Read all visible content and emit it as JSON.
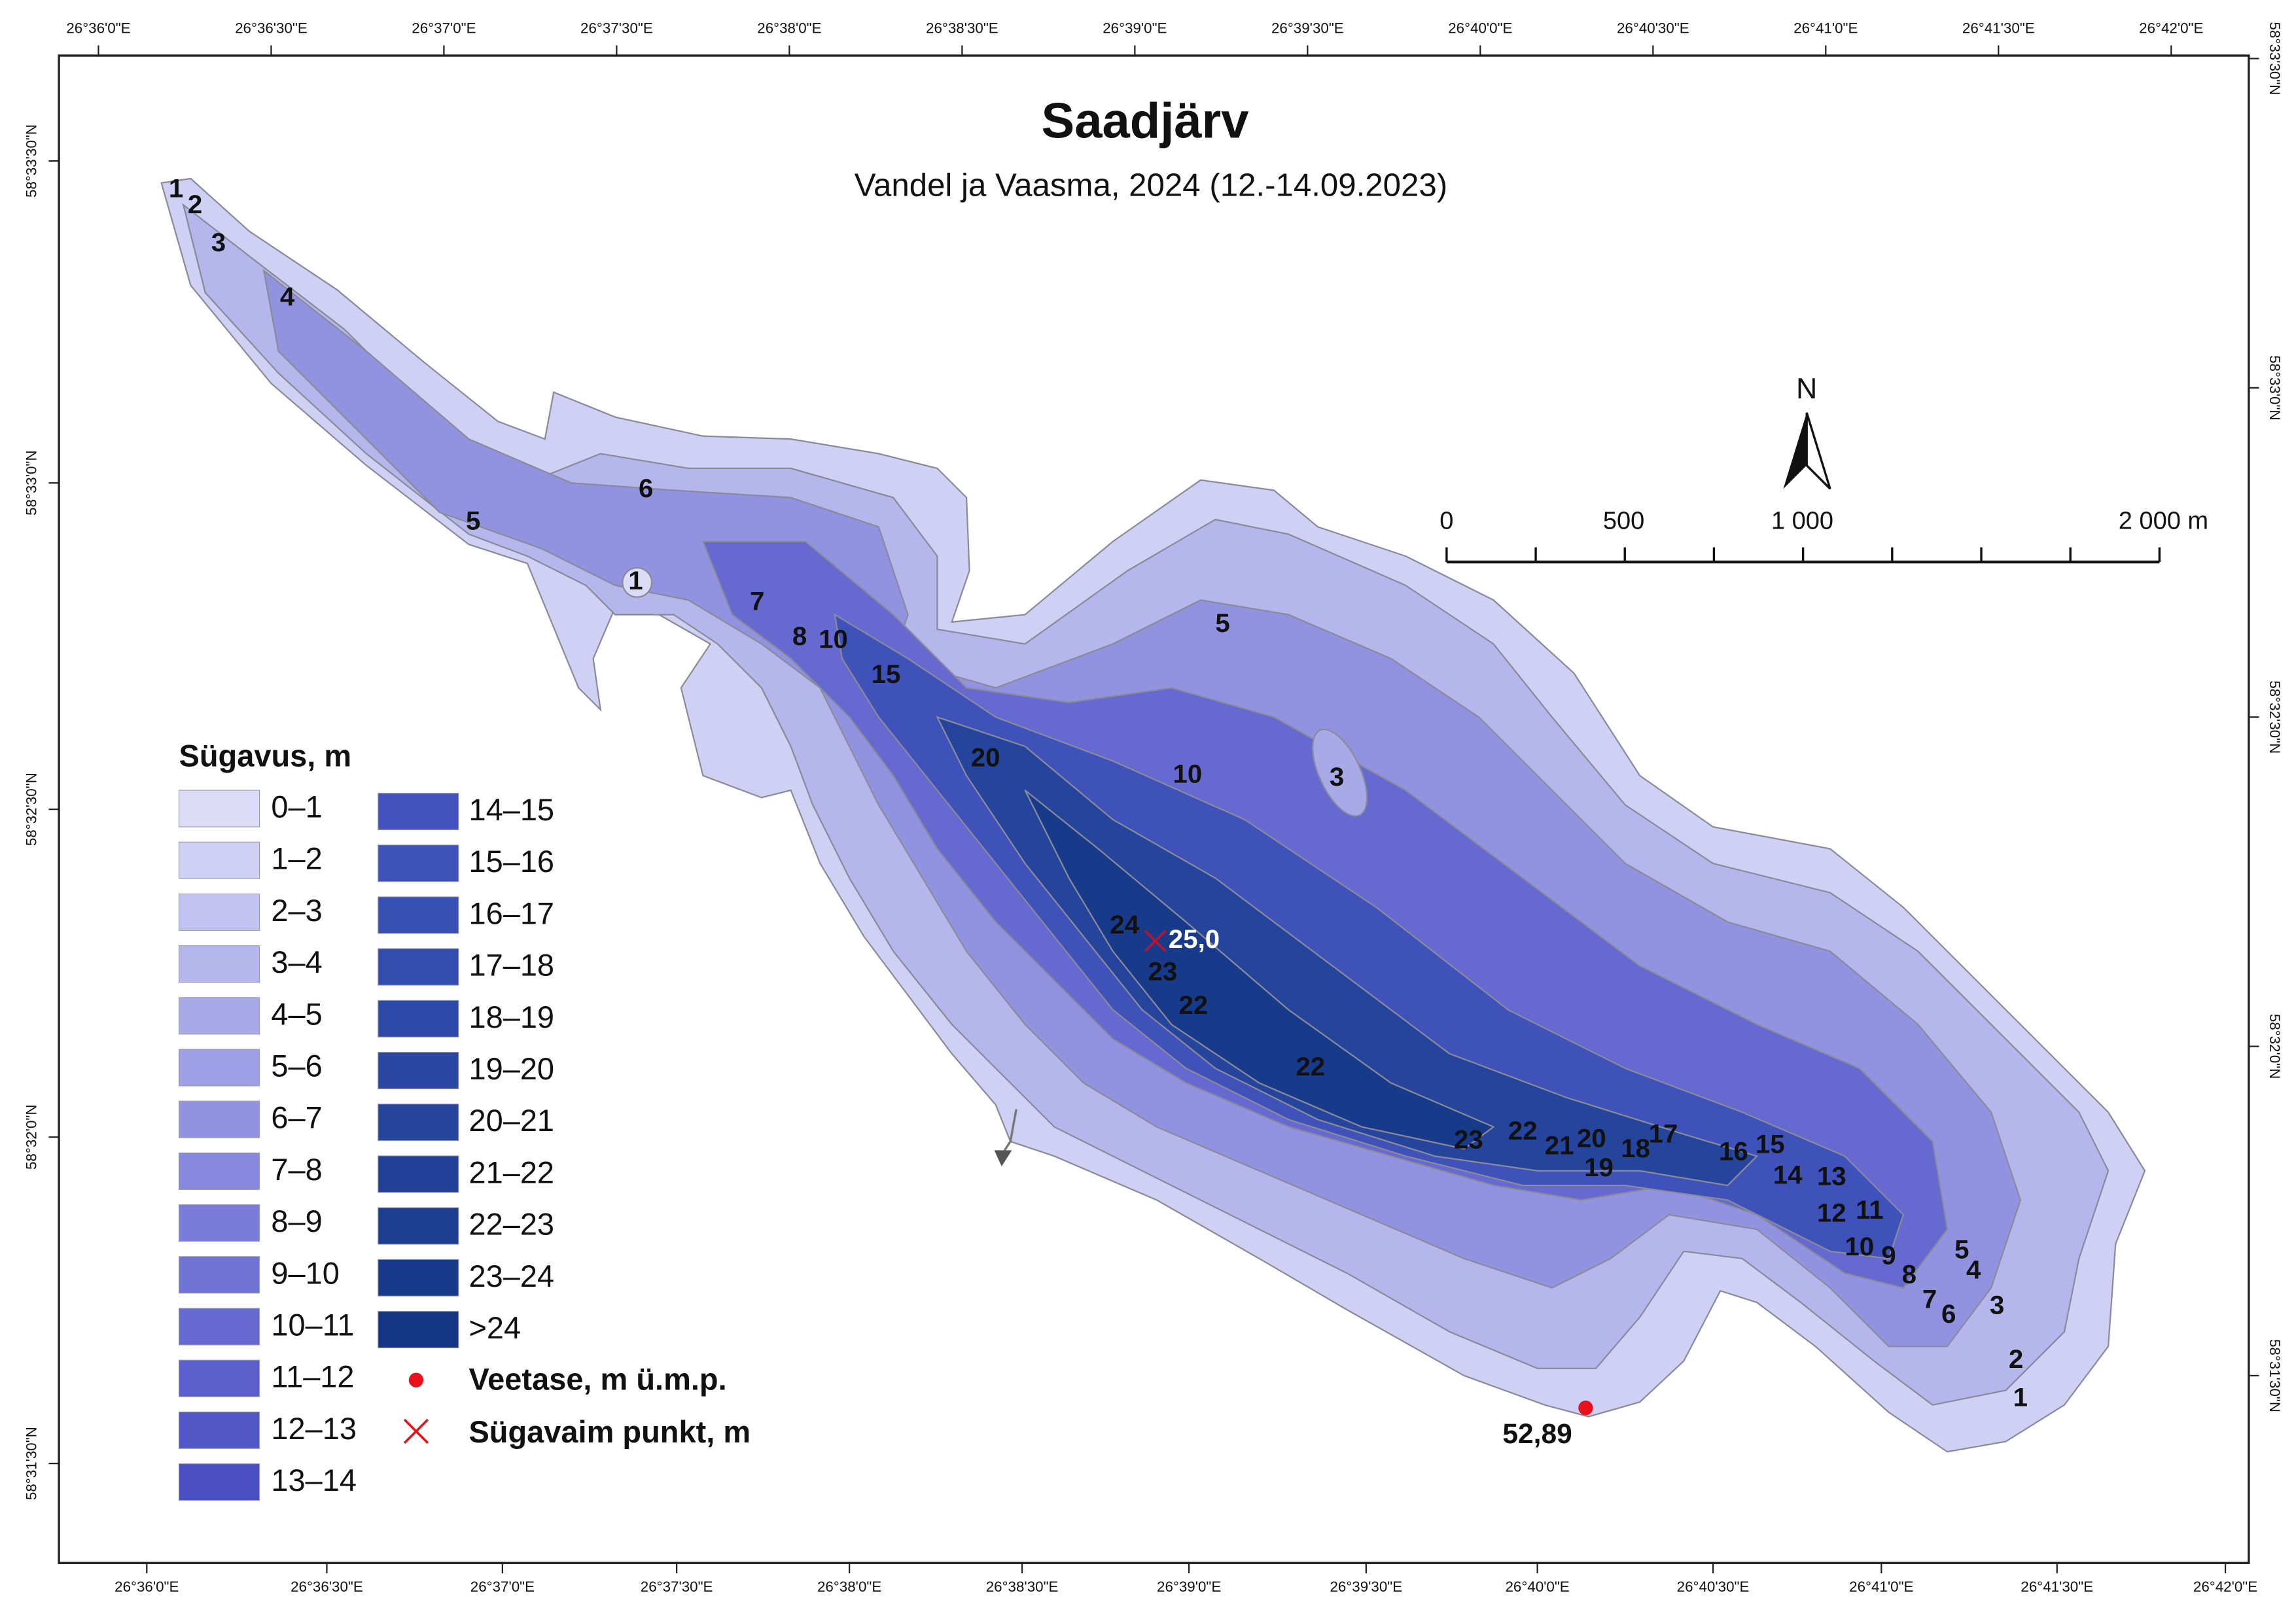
{
  "map": {
    "title": "Saadjärv",
    "subtitle": "Vandel ja Vaasma, 2024 (12.-14.09.2023)",
    "top_labels": [
      "26°36'0\"E",
      "26°36'30\"E",
      "26°37'0\"E",
      "26°37'30\"E",
      "26°38'0\"E",
      "26°38'30\"E",
      "26°39'0\"E",
      "26°39'30\"E",
      "26°40'0\"E",
      "26°40'30\"E",
      "26°41'0\"E",
      "26°41'30\"E",
      "26°42'0\"E"
    ],
    "bottom_labels": [
      "26°36'0\"E",
      "26°36'30\"E",
      "26°37'0\"E",
      "26°37'30\"E",
      "26°38'0\"E",
      "26°38'30\"E",
      "26°39'0\"E",
      "26°39'30\"E",
      "26°40'0\"E",
      "26°40'30\"E",
      "26°41'0\"E",
      "26°41'30\"E",
      "26°42'0\"E"
    ],
    "left_labels": [
      "58°33'30\"N",
      "58°33'0\"N",
      "58°32'30\"N",
      "58°32'0\"N",
      "58°31'30\"N"
    ],
    "right_labels": [
      "58°33'30\"N",
      "58°33'0\"N",
      "58°32'30\"N",
      "58°32'0\"N",
      "58°31'30\"N"
    ],
    "north": "N",
    "scale_labels": [
      "0",
      "500",
      "1 000",
      "2 000 m"
    ],
    "depth_labels": [
      "1",
      "2",
      "3",
      "4",
      "5",
      "6",
      "1",
      "7",
      "8",
      "10",
      "15",
      "5",
      "20",
      "10",
      "3",
      "24",
      "23",
      "22",
      "22",
      "23",
      "22",
      "21",
      "20",
      "19",
      "18",
      "17",
      "16",
      "15",
      "14",
      "13",
      "12",
      "11",
      "10",
      "9",
      "8",
      "7",
      "6",
      "5",
      "4",
      "3",
      "2",
      "1"
    ],
    "deepest_value": "25,0",
    "water_level": "52,89"
  },
  "legend": {
    "title": "Sügavus, m",
    "classes": [
      {
        "label": "0–1",
        "color": "#dcdcf8"
      },
      {
        "label": "1–2",
        "color": "#cfd0f4"
      },
      {
        "label": "2–3",
        "color": "#c2c3f0"
      },
      {
        "label": "3–4",
        "color": "#b5b7ec"
      },
      {
        "label": "4–5",
        "color": "#a8aae8"
      },
      {
        "label": "5–6",
        "color": "#9c9fe4"
      },
      {
        "label": "6–7",
        "color": "#9193e0"
      },
      {
        "label": "7–8",
        "color": "#8588dc"
      },
      {
        "label": "8–9",
        "color": "#7a7dd8"
      },
      {
        "label": "9–10",
        "color": "#6f73d4"
      },
      {
        "label": "10–11",
        "color": "#6569d0"
      },
      {
        "label": "11–12",
        "color": "#5b60cc"
      },
      {
        "label": "12–13",
        "color": "#5257c8"
      },
      {
        "label": "13–14",
        "color": "#4a50c4"
      },
      {
        "label": "14–15",
        "color": "#4452c0"
      },
      {
        "label": "15–16",
        "color": "#3e52ba"
      },
      {
        "label": "16–17",
        "color": "#3850b4"
      },
      {
        "label": "17–18",
        "color": "#334dae"
      },
      {
        "label": "18–19",
        "color": "#2e4aa8"
      },
      {
        "label": "19–20",
        "color": "#2947a2"
      },
      {
        "label": "20–21",
        "color": "#25449c"
      },
      {
        "label": "21–22",
        "color": "#204196"
      },
      {
        "label": "22–23",
        "color": "#1c3e90"
      },
      {
        "label": "23–24",
        "color": "#173a8a"
      },
      {
        "label": ">24",
        "color": "#123684"
      }
    ],
    "water_level": "Veetase, m ü.m.p.",
    "deepest": "Sügavaim punkt, m"
  }
}
